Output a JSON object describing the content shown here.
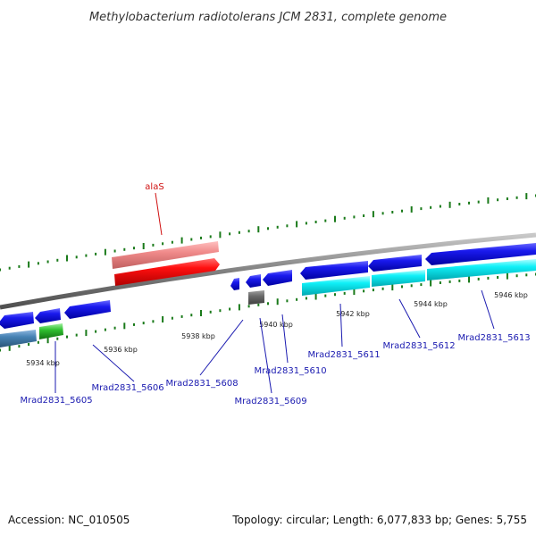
{
  "title": "Methylobacterium radiotolerans JCM 2831, complete genome",
  "footer": {
    "accession": "Accession: NC_010505",
    "summary": "Topology: circular; Length: 6,077,833 bp; Genes: 5,755"
  },
  "scale_labels": [
    "5934 kbp",
    "5936 kbp",
    "5938 kbp",
    "5940 kbp",
    "5942 kbp",
    "5944 kbp",
    "5946 kbp"
  ],
  "gene_labels": [
    {
      "text": "alaS",
      "color": "#d01010"
    },
    {
      "text": "Mrad2831_5605",
      "color": "#1a1ab0"
    },
    {
      "text": "Mrad2831_5606",
      "color": "#1a1ab0"
    },
    {
      "text": "Mrad2831_5608",
      "color": "#1a1ab0"
    },
    {
      "text": "Mrad2831_5609",
      "color": "#1a1ab0"
    },
    {
      "text": "Mrad2831_5610",
      "color": "#1a1ab0"
    },
    {
      "text": "Mrad2831_5611",
      "color": "#1a1ab0"
    },
    {
      "text": "Mrad2831_5612",
      "color": "#1a1ab0"
    },
    {
      "text": "Mrad2831_5613",
      "color": "#1a1ab0"
    }
  ],
  "feature_colors": {
    "cds": "#1010e0",
    "rrna": "#ff1010",
    "rrna_light": "#f08080",
    "trna_cyan": "#10e8f0",
    "steelblue": "#4682b4",
    "green": "#30c030",
    "gray": "#707070",
    "backbone": "#888888",
    "tick": "#1a7a1a"
  }
}
